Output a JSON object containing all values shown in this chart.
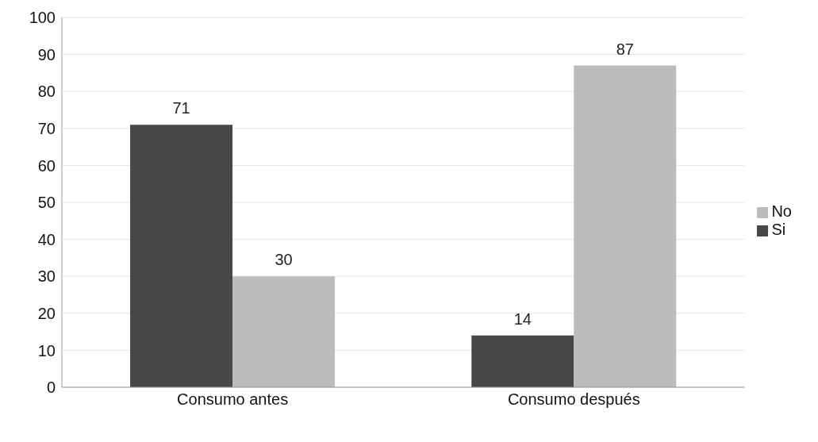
{
  "chart_data": {
    "type": "bar",
    "categories": [
      "Consumo antes",
      "Consumo después"
    ],
    "series": [
      {
        "name": "Si",
        "color": "#474747",
        "values": [
          71,
          14
        ]
      },
      {
        "name": "No",
        "color": "#bcbcbc",
        "values": [
          30,
          87
        ]
      }
    ],
    "ylim": [
      0,
      100
    ],
    "yticks": [
      0,
      10,
      20,
      30,
      40,
      50,
      60,
      70,
      80,
      90,
      100
    ],
    "grid": "y",
    "legend": "right",
    "data_labels": true
  }
}
